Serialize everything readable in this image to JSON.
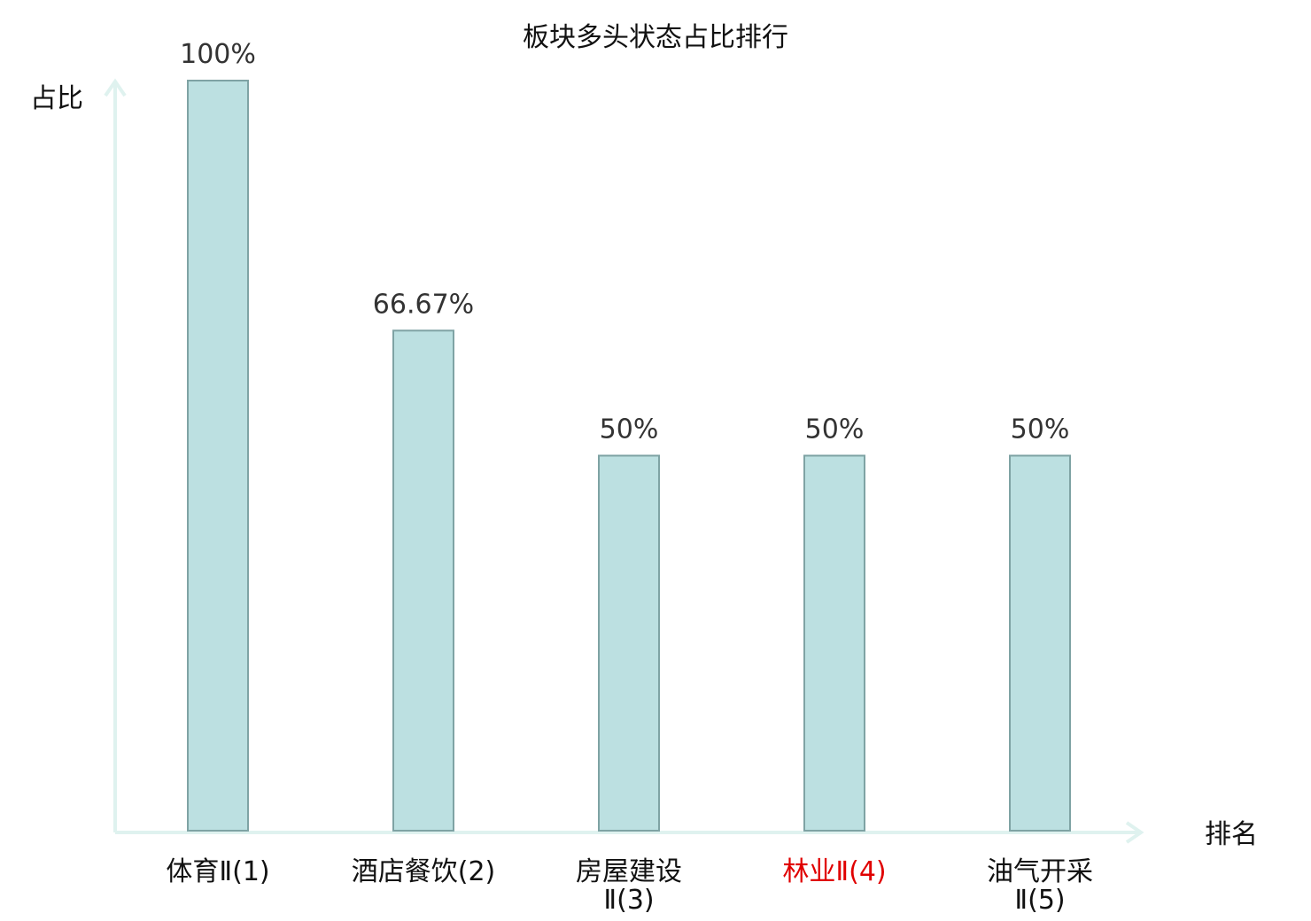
{
  "chart_data": {
    "type": "bar",
    "title": "板块多头状态占比排行",
    "ylabel": "占比",
    "xlabel": "排名",
    "categories": [
      {
        "lines": [
          "体育Ⅱ(1)"
        ],
        "highlight": false
      },
      {
        "lines": [
          "酒店餐饮(2)"
        ],
        "highlight": false
      },
      {
        "lines": [
          "房屋建设",
          "Ⅱ(3)"
        ],
        "highlight": false
      },
      {
        "lines": [
          "林业Ⅱ(4)"
        ],
        "highlight": true
      },
      {
        "lines": [
          "油气开采",
          "Ⅱ(5)"
        ],
        "highlight": false
      }
    ],
    "values": [
      100,
      66.67,
      50,
      50,
      50
    ],
    "value_labels": [
      "100%",
      "66.67%",
      "50%",
      "50%",
      "50%"
    ],
    "ylim": [
      0,
      100
    ],
    "grid": false,
    "colors": {
      "bar_fill": "#bce0e1",
      "bar_stroke": "#7fa3a4",
      "axis": "#dff2ef",
      "highlight_label": "#e00000"
    }
  }
}
